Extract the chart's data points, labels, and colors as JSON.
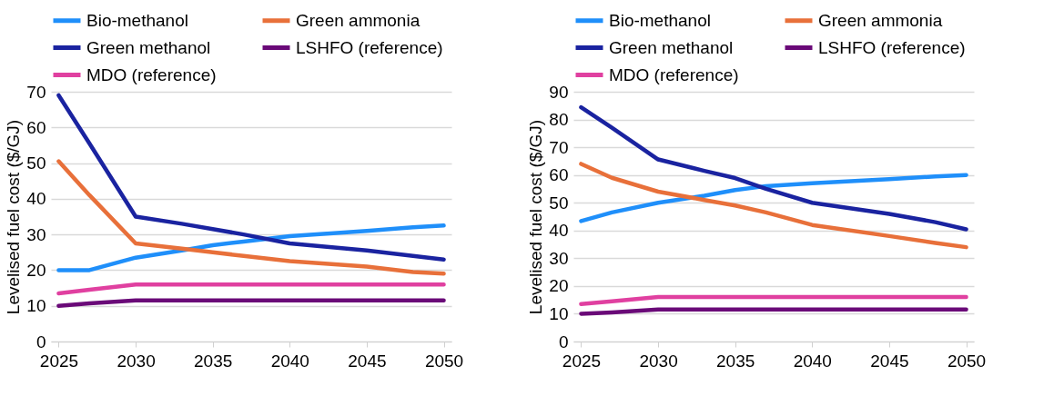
{
  "chart_data": [
    {
      "type": "line",
      "ylabel": "Levelised fuel cost ($/GJ)",
      "x": [
        2025,
        2027,
        2030,
        2033,
        2035,
        2037,
        2040,
        2045,
        2048,
        2050
      ],
      "xlim": [
        2024.5,
        2050.5
      ],
      "xticks": [
        2025,
        2030,
        2035,
        2040,
        2045,
        2050
      ],
      "ylim": [
        0,
        70
      ],
      "yticks": [
        0,
        10,
        20,
        30,
        40,
        50,
        60,
        70
      ],
      "grid": "y",
      "legend": "top",
      "marker": "none",
      "series": [
        {
          "name": "Bio-methanol",
          "color": "#1f8ffa",
          "values": [
            20,
            20,
            23.5,
            25.5,
            27,
            28,
            29.5,
            31,
            32,
            32.5
          ]
        },
        {
          "name": "Green ammonia",
          "color": "#e8703a",
          "values": [
            50.5,
            41,
            27.5,
            26,
            25,
            24,
            22.5,
            21,
            19.5,
            19
          ]
        },
        {
          "name": "Green methanol",
          "color": "#1a23a0",
          "values": [
            69,
            55.5,
            35,
            33,
            31.5,
            30,
            27.5,
            25.5,
            24,
            23
          ]
        },
        {
          "name": "LSHFO (reference)",
          "color": "#6a0a78",
          "values": [
            10,
            10.7,
            11.5,
            11.5,
            11.5,
            11.5,
            11.5,
            11.5,
            11.5,
            11.5
          ]
        },
        {
          "name": "MDO (reference)",
          "color": "#e040a0",
          "values": [
            13.5,
            14.5,
            16,
            16,
            16,
            16,
            16,
            16,
            16,
            16
          ]
        }
      ]
    },
    {
      "type": "line",
      "ylabel": "Levelised fuel cost ($/GJ)",
      "x": [
        2025,
        2027,
        2030,
        2033,
        2035,
        2037,
        2040,
        2045,
        2048,
        2050
      ],
      "xlim": [
        2024.5,
        2050.5
      ],
      "xticks": [
        2025,
        2030,
        2035,
        2040,
        2045,
        2050
      ],
      "ylim": [
        0,
        90
      ],
      "yticks": [
        0,
        10,
        20,
        30,
        40,
        50,
        60,
        70,
        80,
        90
      ],
      "grid": "y",
      "legend": "top",
      "marker": "none",
      "series": [
        {
          "name": "Bio-methanol",
          "color": "#1f8ffa",
          "values": [
            43.4,
            46.5,
            50,
            52.5,
            54.6,
            56,
            57,
            58.5,
            59.5,
            60
          ]
        },
        {
          "name": "Green ammonia",
          "color": "#e8703a",
          "values": [
            64,
            59,
            54,
            51,
            49,
            46.5,
            42,
            38,
            35.5,
            34
          ]
        },
        {
          "name": "Green methanol",
          "color": "#1a23a0",
          "values": [
            84.4,
            77,
            65.6,
            61.5,
            58.9,
            55,
            50,
            46,
            43,
            40.4
          ]
        },
        {
          "name": "LSHFO (reference)",
          "color": "#6a0a78",
          "values": [
            10,
            10.5,
            11.5,
            11.5,
            11.5,
            11.5,
            11.5,
            11.5,
            11.5,
            11.5
          ]
        },
        {
          "name": "MDO (reference)",
          "color": "#e040a0",
          "values": [
            13.5,
            14.5,
            16,
            16,
            16,
            16,
            16,
            16,
            16,
            16
          ]
        }
      ]
    }
  ]
}
